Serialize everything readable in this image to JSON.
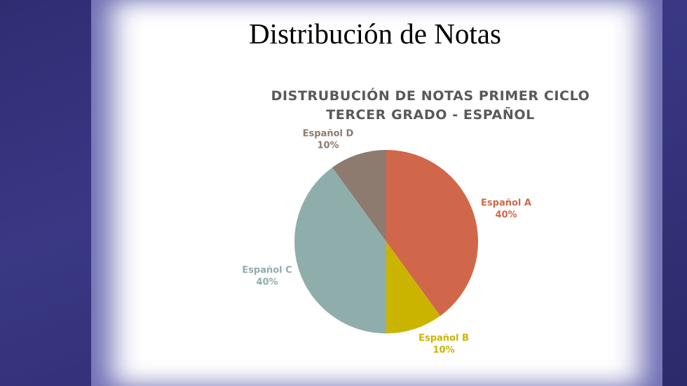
{
  "page_title": "Distribución de Notas",
  "chart_data": {
    "type": "pie",
    "title": "DISTRUBUCIÓN DE NOTAS PRIMER CICLO TERCER GRADO - ESPAÑOL",
    "categories": [
      "Español A",
      "Español B",
      "Español C",
      "Español D"
    ],
    "values": [
      40,
      10,
      40,
      10
    ],
    "value_labels": [
      "40%",
      "10%",
      "40%",
      "10%"
    ],
    "colors": [
      "#d0674a",
      "#cbb400",
      "#8fadab",
      "#8c7b6e"
    ]
  }
}
